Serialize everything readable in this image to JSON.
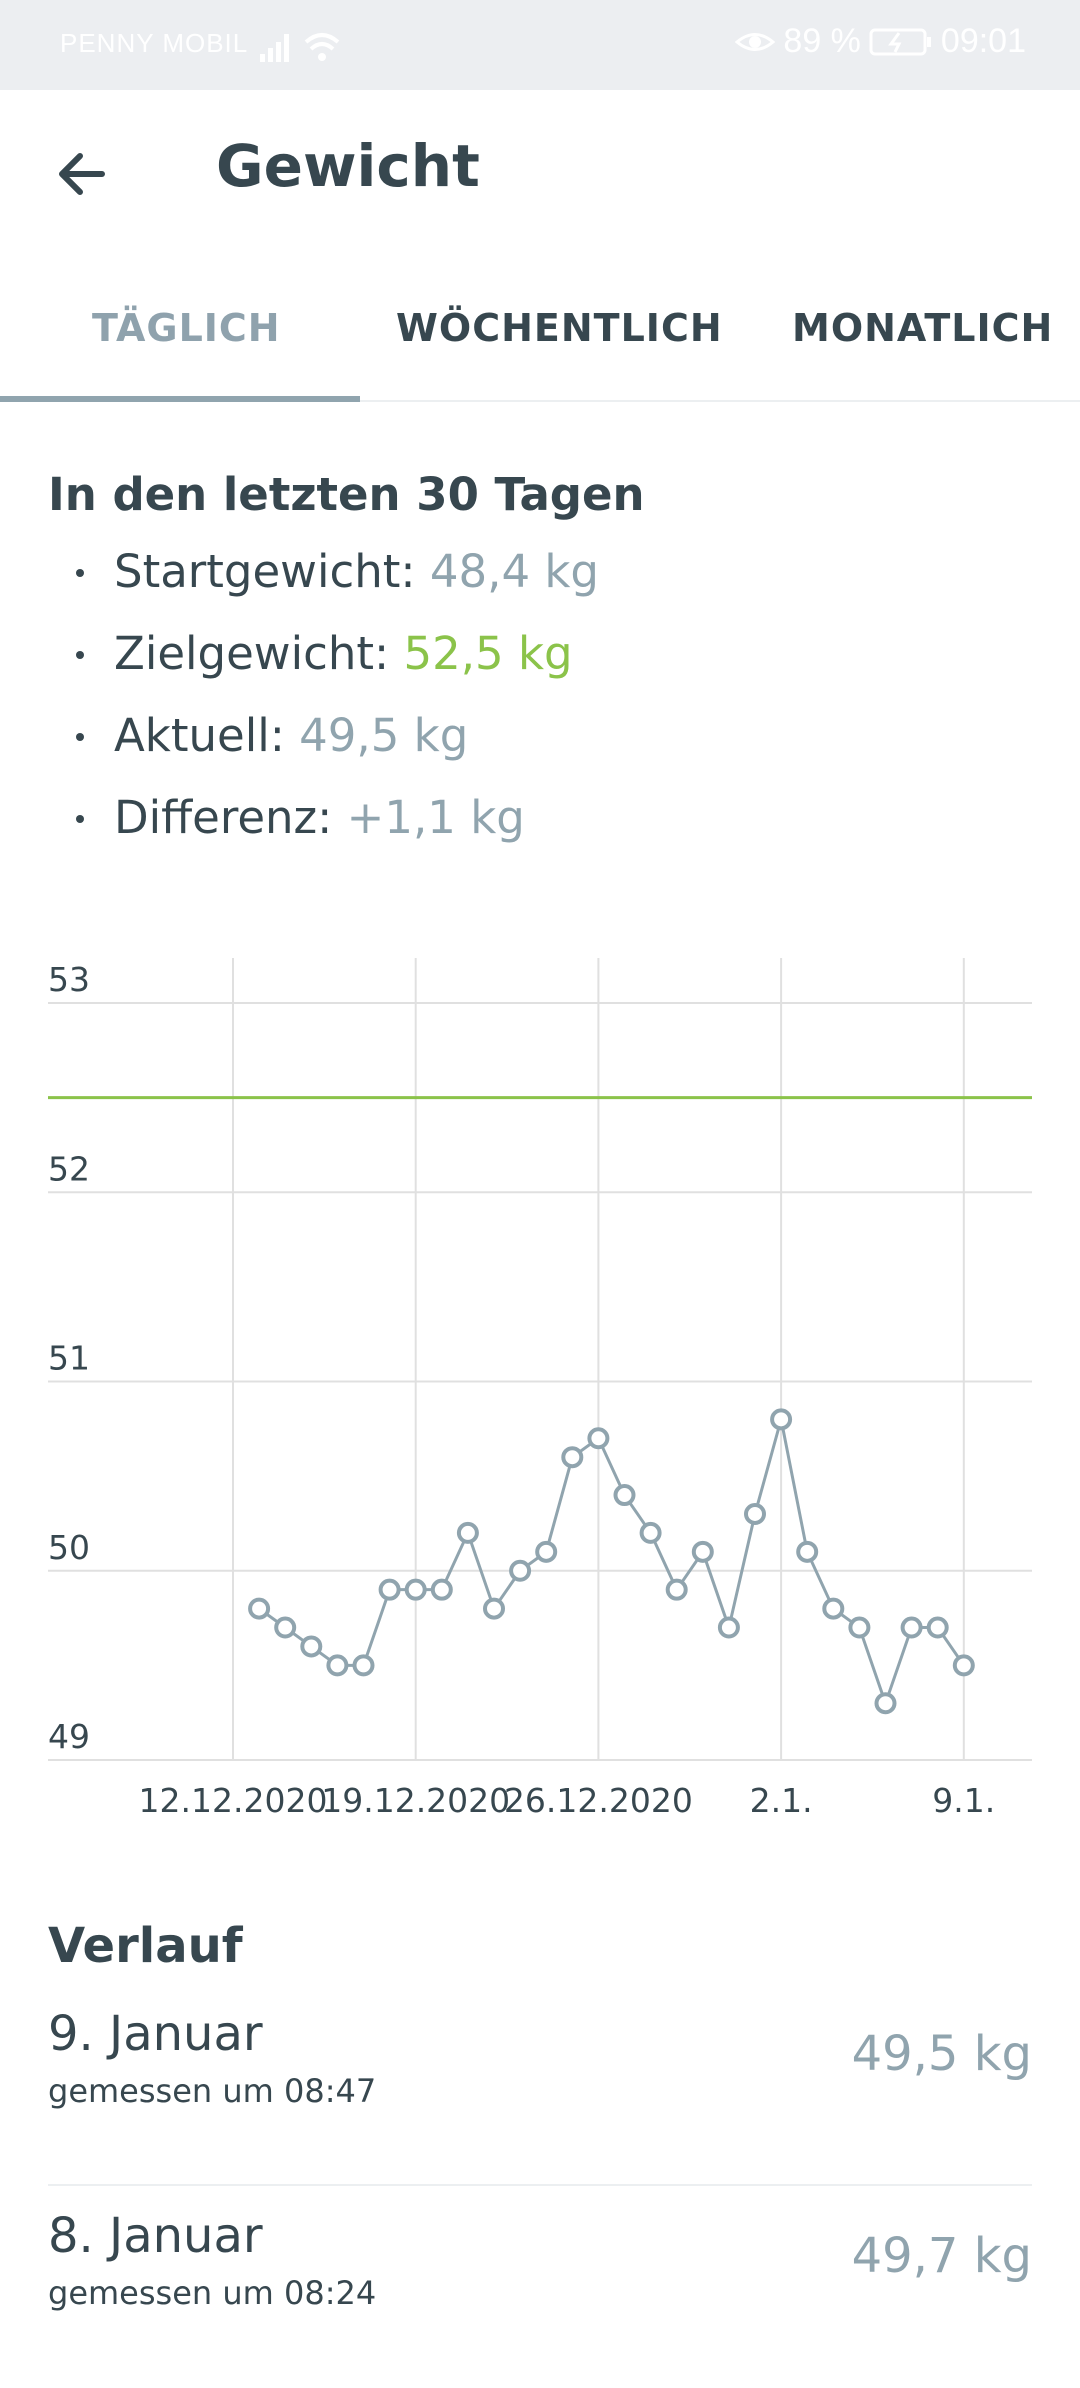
{
  "status_bar": {
    "carrier": "PENNY MOBIL",
    "battery": "89 %",
    "time": "09:01"
  },
  "app_bar": {
    "title": "Gewicht"
  },
  "tabs": [
    {
      "label": "TÄGLICH",
      "active": true
    },
    {
      "label": "WÖCHENTLICH",
      "active": false
    },
    {
      "label": "MONATLICH",
      "active": false
    }
  ],
  "summary": {
    "heading": "In den letzten 30 Tagen",
    "items": [
      {
        "label": "Startgewicht:",
        "value": "48,4 kg"
      },
      {
        "label": "Zielgewicht:",
        "value": "52,5 kg"
      },
      {
        "label": "Aktuell:",
        "value": "49,5 kg"
      },
      {
        "label": "Differenz:",
        "value": "+1,1 kg"
      }
    ]
  },
  "chart_data": {
    "type": "line",
    "ylim": [
      49,
      53
    ],
    "yticks": [
      "53",
      "52",
      "51",
      "50",
      "49"
    ],
    "x_tick_labels": [
      "12.12.2020",
      "19.12.2020",
      "26.12.2020",
      "2.1.",
      "9.1."
    ],
    "goal_value": 52.5,
    "x_start_date": "2020-12-12",
    "series": [
      {
        "x": [
          "2020-12-13",
          "2020-12-14",
          "2020-12-15",
          "2020-12-16",
          "2020-12-17",
          "2020-12-18",
          "2020-12-19",
          "2020-12-20",
          "2020-12-21",
          "2020-12-22",
          "2020-12-23",
          "2020-12-24",
          "2020-12-25",
          "2020-12-26",
          "2020-12-27",
          "2020-12-28",
          "2020-12-29",
          "2020-12-30",
          "2020-12-31",
          "2021-01-01",
          "2021-01-02",
          "2021-01-03",
          "2021-01-04",
          "2021-01-05",
          "2021-01-06",
          "2021-01-07",
          "2021-01-08",
          "2021-01-09"
        ],
        "values": [
          49.8,
          49.7,
          49.6,
          49.5,
          49.5,
          49.9,
          49.9,
          49.9,
          50.2,
          49.8,
          50.0,
          50.1,
          50.6,
          50.7,
          50.4,
          50.2,
          49.9,
          50.1,
          49.7,
          50.3,
          50.8,
          50.1,
          49.8,
          49.7,
          49.3,
          49.7,
          49.7,
          49.5
        ]
      }
    ],
    "colors": {
      "line": "#90a4ae",
      "goal": "#8bc34a",
      "grid": "#e0e0e0"
    }
  },
  "history": {
    "heading": "Verlauf",
    "entries": [
      {
        "date": "9. Januar",
        "time": "gemessen um 08:47",
        "weight": "49,5 kg"
      },
      {
        "date": "8. Januar",
        "time": "gemessen um 08:24",
        "weight": "49,7 kg"
      }
    ]
  }
}
